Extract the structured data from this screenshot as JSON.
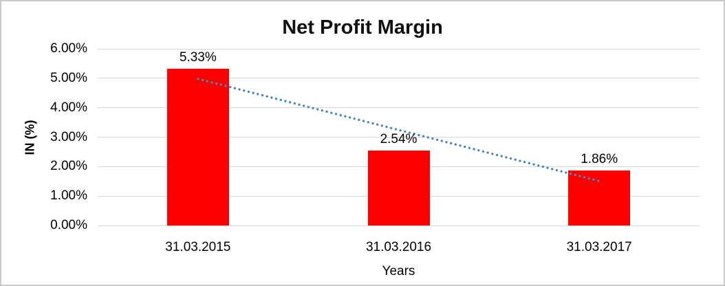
{
  "chart_data": {
    "type": "bar",
    "title": "Net Profit Margin",
    "xlabel": "Years",
    "ylabel": "IN (%)",
    "categories": [
      "31.03.2015",
      "31.03.2016",
      "31.03.2017"
    ],
    "values": [
      5.33,
      2.54,
      1.86
    ],
    "data_labels": [
      "5.33%",
      "2.54%",
      "1.86%"
    ],
    "ytick_labels": [
      "0.00%",
      "1.00%",
      "2.00%",
      "3.00%",
      "4.00%",
      "5.00%",
      "6.00%"
    ],
    "ytick_values": [
      0,
      1,
      2,
      3,
      4,
      5,
      6
    ],
    "ylim": [
      0,
      6
    ],
    "grid": true,
    "legend": "none",
    "bar_color": "#ff0000",
    "gridline_color": "#d6d6d6",
    "trendline": {
      "type": "linear",
      "style": "dotted",
      "color": "#4a86c8",
      "start_value": 4.98,
      "end_value": 1.51
    }
  }
}
